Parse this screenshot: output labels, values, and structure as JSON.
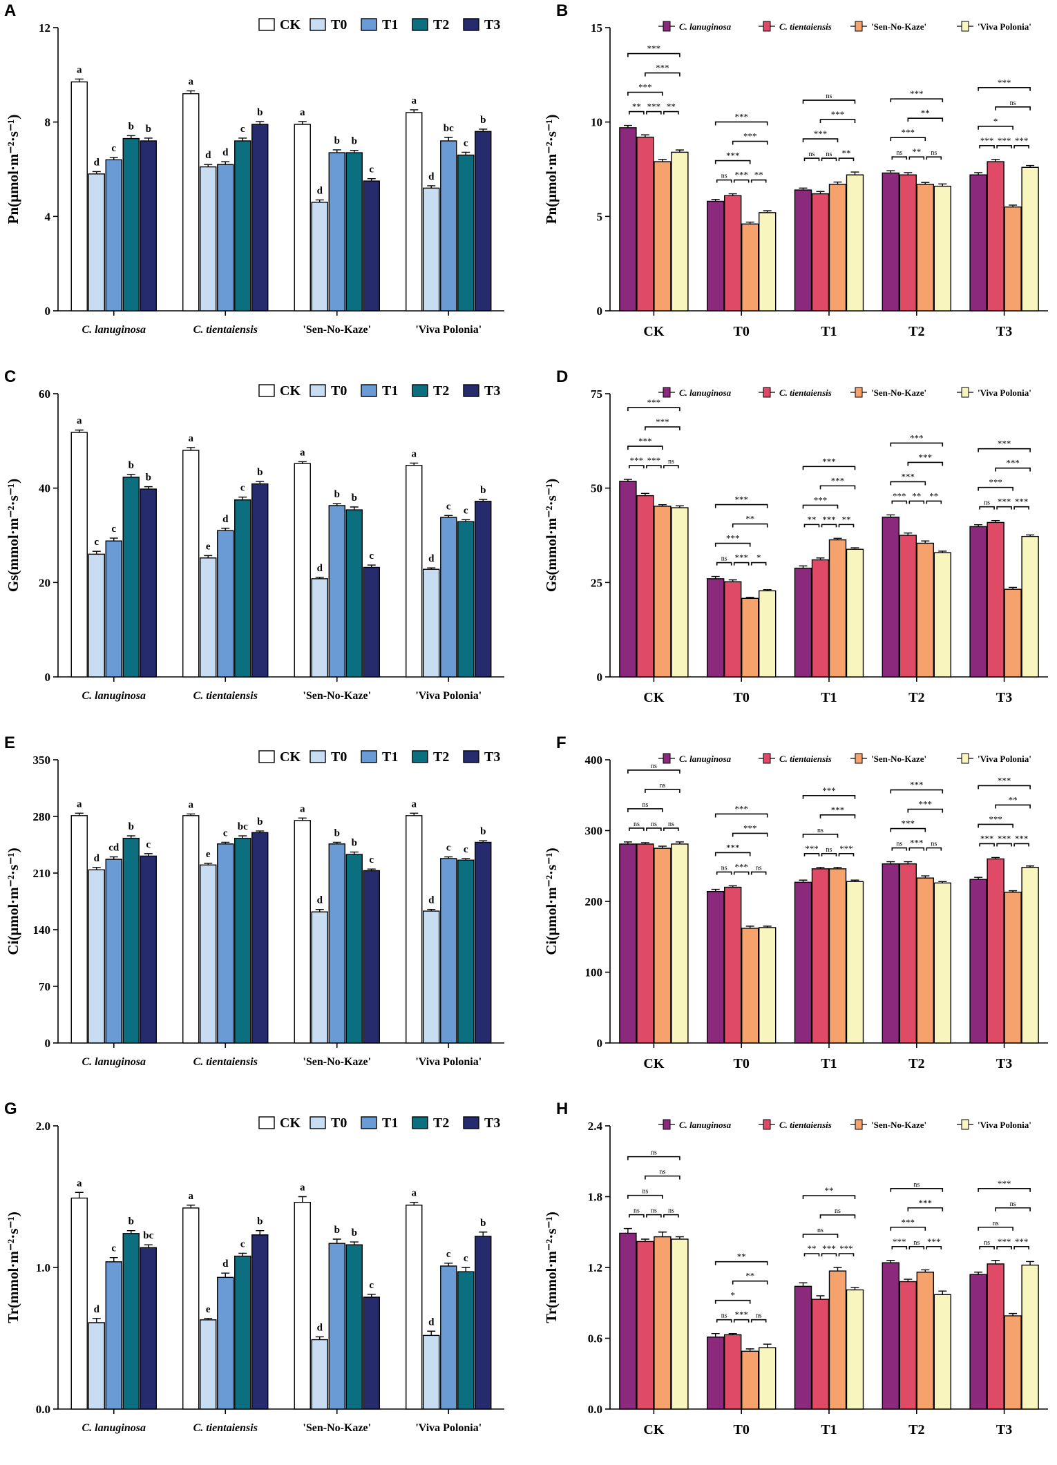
{
  "groups": [
    "C. lanuginosa",
    "C. tientaiensis",
    "'Sen-No-Kaze'",
    "'Viva Polonia'"
  ],
  "group_italic": [
    true,
    true,
    false,
    false
  ],
  "treatments": [
    "CK",
    "T0",
    "T1",
    "T2",
    "T3"
  ],
  "treatment_colors": [
    "#ffffff",
    "#c9ddf2",
    "#6b9bd4",
    "#0c6f80",
    "#252b6d"
  ],
  "cultivar_colors": [
    "#8b2a7c",
    "#df4a66",
    "#f5a26c",
    "#f8f5bf"
  ],
  "chart_data": [
    {
      "id": "A",
      "type": "bar",
      "ylabel": "Pn(μmol·m⁻²·s⁻¹)",
      "ylim": [
        0,
        12
      ],
      "yticks": [
        0,
        4,
        8,
        12
      ],
      "ytick_labels": [
        "0",
        "4",
        "8",
        "12"
      ],
      "categories": [
        "C. lanuginosa",
        "C. tientaiensis",
        "'Sen-No-Kaze'",
        "'Viva Polonia'"
      ],
      "series": [
        {
          "name": "CK",
          "values": [
            9.7,
            9.2,
            7.9,
            8.4
          ],
          "errors": [
            0.12,
            0.12,
            0.12,
            0.12
          ],
          "letters": [
            "a",
            "a",
            "a",
            "a"
          ]
        },
        {
          "name": "T0",
          "values": [
            5.8,
            6.1,
            4.6,
            5.2
          ],
          "errors": [
            0.1,
            0.1,
            0.1,
            0.1
          ],
          "letters": [
            "d",
            "d",
            "d",
            "d"
          ]
        },
        {
          "name": "T1",
          "values": [
            6.4,
            6.2,
            6.7,
            7.2
          ],
          "errors": [
            0.1,
            0.12,
            0.12,
            0.15
          ],
          "letters": [
            "c",
            "d",
            "b",
            "bc"
          ]
        },
        {
          "name": "T2",
          "values": [
            7.3,
            7.2,
            6.7,
            6.6
          ],
          "errors": [
            0.12,
            0.12,
            0.1,
            0.12
          ],
          "letters": [
            "b",
            "c",
            "b",
            "c"
          ]
        },
        {
          "name": "T3",
          "values": [
            7.2,
            7.9,
            5.5,
            7.6
          ],
          "errors": [
            0.12,
            0.12,
            0.1,
            0.1
          ],
          "letters": [
            "b",
            "b",
            "c",
            "b"
          ]
        }
      ]
    },
    {
      "id": "C",
      "type": "bar",
      "ylabel": "Gs(mmol·m⁻²·s⁻¹)",
      "ylim": [
        0,
        60
      ],
      "yticks": [
        0,
        20,
        40,
        60
      ],
      "ytick_labels": [
        "0",
        "20",
        "40",
        "60"
      ],
      "categories": [
        "C. lanuginosa",
        "C. tientaiensis",
        "'Sen-No-Kaze'",
        "'Viva Polonia'"
      ],
      "series": [
        {
          "name": "CK",
          "values": [
            51.8,
            48.0,
            45.2,
            44.8
          ],
          "errors": [
            0.5,
            0.6,
            0.4,
            0.5
          ],
          "letters": [
            "a",
            "a",
            "a",
            "a"
          ]
        },
        {
          "name": "T0",
          "values": [
            26.0,
            25.2,
            20.8,
            22.8
          ],
          "errors": [
            0.6,
            0.5,
            0.3,
            0.3
          ],
          "letters": [
            "c",
            "e",
            "d",
            "d"
          ]
        },
        {
          "name": "T1",
          "values": [
            28.8,
            31.0,
            36.3,
            33.8
          ],
          "errors": [
            0.6,
            0.5,
            0.4,
            0.4
          ],
          "letters": [
            "c",
            "d",
            "b",
            "c"
          ]
        },
        {
          "name": "T2",
          "values": [
            42.3,
            37.5,
            35.4,
            32.9
          ],
          "errors": [
            0.6,
            0.6,
            0.6,
            0.4
          ],
          "letters": [
            "b",
            "c",
            "b",
            "c"
          ]
        },
        {
          "name": "T3",
          "values": [
            39.8,
            40.9,
            23.2,
            37.2
          ],
          "errors": [
            0.5,
            0.5,
            0.5,
            0.4
          ],
          "letters": [
            "b",
            "b",
            "c",
            "b"
          ]
        }
      ]
    },
    {
      "id": "E",
      "type": "bar",
      "ylabel": "Ci(μmol·m⁻²·s⁻¹)",
      "ylim": [
        0,
        350
      ],
      "yticks": [
        0,
        70,
        140,
        210,
        280,
        350
      ],
      "ytick_labels": [
        "0",
        "70",
        "140",
        "210",
        "280",
        "350"
      ],
      "categories": [
        "C. lanuginosa",
        "C. tientaiensis",
        "'Sen-No-Kaze'",
        "'Viva Polonia'"
      ],
      "series": [
        {
          "name": "CK",
          "values": [
            281,
            281,
            275,
            281
          ],
          "errors": [
            3,
            2,
            3,
            3
          ],
          "letters": [
            "a",
            "a",
            "a",
            "a"
          ]
        },
        {
          "name": "T0",
          "values": [
            214,
            220,
            162,
            163
          ],
          "errors": [
            3,
            2,
            3,
            2
          ],
          "letters": [
            "d",
            "e",
            "d",
            "d"
          ]
        },
        {
          "name": "T1",
          "values": [
            227,
            246,
            246,
            228
          ],
          "errors": [
            3,
            2,
            2,
            2
          ],
          "letters": [
            "cd",
            "c",
            "b",
            "c"
          ]
        },
        {
          "name": "T2",
          "values": [
            253,
            253,
            233,
            226
          ],
          "errors": [
            3,
            3,
            3,
            2
          ],
          "letters": [
            "b",
            "bc",
            "b",
            "c"
          ]
        },
        {
          "name": "T3",
          "values": [
            231,
            260,
            213,
            248
          ],
          "errors": [
            3,
            2,
            2,
            2
          ],
          "letters": [
            "c",
            "b",
            "c",
            "b"
          ]
        }
      ]
    },
    {
      "id": "G",
      "type": "bar",
      "ylabel": "Tr(mmol·m⁻²·s⁻¹)",
      "ylim": [
        0,
        2.0
      ],
      "yticks": [
        0,
        1.0,
        2.0
      ],
      "ytick_labels": [
        "0.0",
        "1.0",
        "2.0"
      ],
      "categories": [
        "C. lanuginosa",
        "C. tientaiensis",
        "'Sen-No-Kaze'",
        "'Viva Polonia'"
      ],
      "series": [
        {
          "name": "CK",
          "values": [
            1.49,
            1.42,
            1.46,
            1.44
          ],
          "errors": [
            0.04,
            0.02,
            0.04,
            0.02
          ],
          "letters": [
            "a",
            "a",
            "a",
            "a"
          ]
        },
        {
          "name": "T0",
          "values": [
            0.61,
            0.63,
            0.49,
            0.52
          ],
          "errors": [
            0.03,
            0.01,
            0.02,
            0.03
          ],
          "letters": [
            "d",
            "e",
            "d",
            "d"
          ]
        },
        {
          "name": "T1",
          "values": [
            1.04,
            0.93,
            1.17,
            1.01
          ],
          "errors": [
            0.03,
            0.03,
            0.03,
            0.02
          ],
          "letters": [
            "c",
            "d",
            "b",
            "c"
          ]
        },
        {
          "name": "T2",
          "values": [
            1.24,
            1.08,
            1.16,
            0.97
          ],
          "errors": [
            0.02,
            0.02,
            0.02,
            0.03
          ],
          "letters": [
            "b",
            "c",
            "b",
            "c"
          ]
        },
        {
          "name": "T3",
          "values": [
            1.14,
            1.23,
            0.79,
            1.22
          ],
          "errors": [
            0.02,
            0.03,
            0.02,
            0.03
          ],
          "letters": [
            "bc",
            "b",
            "c",
            "b"
          ]
        }
      ]
    },
    {
      "id": "B",
      "type": "bar",
      "ylabel": "Pn(μmol·m⁻²·s⁻¹)",
      "ylim": [
        0,
        15
      ],
      "yticks": [
        0,
        5,
        10,
        15
      ],
      "ytick_labels": [
        "0",
        "5",
        "10",
        "15"
      ],
      "categories": [
        "CK",
        "T0",
        "T1",
        "T2",
        "T3"
      ],
      "series": [
        {
          "name": "C. lanuginosa",
          "values": [
            9.7,
            5.8,
            6.4,
            7.3,
            7.2
          ],
          "errors": [
            0.12,
            0.1,
            0.1,
            0.12,
            0.12
          ]
        },
        {
          "name": "C. tientaiensis",
          "values": [
            9.2,
            6.1,
            6.2,
            7.2,
            7.9
          ],
          "errors": [
            0.12,
            0.1,
            0.12,
            0.12,
            0.12
          ]
        },
        {
          "name": "'Sen-No-Kaze'",
          "values": [
            7.9,
            4.6,
            6.7,
            6.7,
            5.5
          ],
          "errors": [
            0.12,
            0.1,
            0.12,
            0.1,
            0.1
          ]
        },
        {
          "name": "'Viva Polonia'",
          "values": [
            8.4,
            5.2,
            7.2,
            6.6,
            7.6
          ],
          "errors": [
            0.12,
            0.1,
            0.15,
            0.12,
            0.1
          ]
        }
      ],
      "comparisons": [
        {
          "top": [
            "***",
            "***",
            "***"
          ],
          "adj": [
            "**",
            "***",
            "**"
          ]
        },
        {
          "top": [
            "***",
            "***",
            "***"
          ],
          "adj": [
            "ns",
            "***",
            "**"
          ]
        },
        {
          "top": [
            "***",
            "***",
            "ns"
          ],
          "adj": [
            "ns",
            "ns",
            "**"
          ]
        },
        {
          "top": [
            "***",
            "**",
            "***"
          ],
          "adj": [
            "ns",
            "**",
            "ns"
          ]
        },
        {
          "top": [
            "*",
            "ns",
            "***"
          ],
          "adj": [
            "***",
            "***",
            "***"
          ]
        }
      ]
    },
    {
      "id": "D",
      "type": "bar",
      "ylabel": "Gs(mmol·m⁻²·s⁻¹)",
      "ylim": [
        0,
        75
      ],
      "yticks": [
        0,
        25,
        50,
        75
      ],
      "ytick_labels": [
        "0",
        "25",
        "50",
        "75"
      ],
      "categories": [
        "CK",
        "T0",
        "T1",
        "T2",
        "T3"
      ],
      "series": [
        {
          "name": "C. lanuginosa",
          "values": [
            51.8,
            26.0,
            28.8,
            42.3,
            39.8
          ],
          "errors": [
            0.5,
            0.6,
            0.6,
            0.6,
            0.5
          ]
        },
        {
          "name": "C. tientaiensis",
          "values": [
            48.0,
            25.2,
            31.0,
            37.5,
            40.9
          ],
          "errors": [
            0.6,
            0.5,
            0.5,
            0.6,
            0.5
          ]
        },
        {
          "name": "'Sen-No-Kaze'",
          "values": [
            45.2,
            20.8,
            36.3,
            35.4,
            23.2
          ],
          "errors": [
            0.4,
            0.3,
            0.4,
            0.6,
            0.5
          ]
        },
        {
          "name": "'Viva Polonia'",
          "values": [
            44.8,
            22.8,
            33.8,
            32.9,
            37.2
          ],
          "errors": [
            0.5,
            0.3,
            0.4,
            0.4,
            0.4
          ]
        }
      ],
      "comparisons": [
        {
          "top": [
            "***",
            "***",
            "***"
          ],
          "adj": [
            "***",
            "***",
            "ns"
          ]
        },
        {
          "top": [
            "***",
            "**",
            "***"
          ],
          "adj": [
            "ns",
            "***",
            "*"
          ]
        },
        {
          "top": [
            "***",
            "***",
            "***"
          ],
          "adj": [
            "**",
            "***",
            "**"
          ]
        },
        {
          "top": [
            "***",
            "***",
            "***"
          ],
          "adj": [
            "***",
            "**",
            "**"
          ]
        },
        {
          "top": [
            "***",
            "***",
            "***"
          ],
          "adj": [
            "ns",
            "***",
            "***"
          ]
        }
      ]
    },
    {
      "id": "F",
      "type": "bar",
      "ylabel": "Ci(μmol·m⁻²·s⁻¹)",
      "ylim": [
        0,
        400
      ],
      "yticks": [
        0,
        100,
        200,
        300,
        400
      ],
      "ytick_labels": [
        "0",
        "100",
        "200",
        "300",
        "400"
      ],
      "categories": [
        "CK",
        "T0",
        "T1",
        "T2",
        "T3"
      ],
      "series": [
        {
          "name": "C. lanuginosa",
          "values": [
            281,
            214,
            227,
            253,
            231
          ],
          "errors": [
            3,
            3,
            3,
            3,
            3
          ]
        },
        {
          "name": "C. tientaiensis",
          "values": [
            281,
            220,
            246,
            253,
            260
          ],
          "errors": [
            2,
            2,
            2,
            3,
            2
          ]
        },
        {
          "name": "'Sen-No-Kaze'",
          "values": [
            275,
            162,
            246,
            233,
            213
          ],
          "errors": [
            3,
            3,
            2,
            3,
            2
          ]
        },
        {
          "name": "'Viva Polonia'",
          "values": [
            281,
            163,
            228,
            226,
            248
          ],
          "errors": [
            3,
            2,
            2,
            2,
            2
          ]
        }
      ],
      "comparisons": [
        {
          "top": [
            "ns",
            "ns",
            "ns"
          ],
          "adj": [
            "ns",
            "ns",
            "ns"
          ]
        },
        {
          "top": [
            "***",
            "***",
            "***"
          ],
          "adj": [
            "ns",
            "***",
            "ns"
          ]
        },
        {
          "top": [
            "ns",
            "***",
            "***"
          ],
          "adj": [
            "***",
            "ns",
            "***"
          ]
        },
        {
          "top": [
            "***",
            "***",
            "***"
          ],
          "adj": [
            "ns",
            "***",
            "ns"
          ]
        },
        {
          "top": [
            "***",
            "**",
            "***"
          ],
          "adj": [
            "***",
            "***",
            "***"
          ]
        }
      ]
    },
    {
      "id": "H",
      "type": "bar",
      "ylabel": "Tr(mmol·m⁻²·s⁻¹)",
      "ylim": [
        0,
        2.4
      ],
      "yticks": [
        0,
        0.6,
        1.2,
        1.8,
        2.4
      ],
      "ytick_labels": [
        "0.0",
        "0.6",
        "1.2",
        "1.8",
        "2.4"
      ],
      "categories": [
        "CK",
        "T0",
        "T1",
        "T2",
        "T3"
      ],
      "series": [
        {
          "name": "C. lanuginosa",
          "values": [
            1.49,
            0.61,
            1.04,
            1.24,
            1.14
          ],
          "errors": [
            0.04,
            0.03,
            0.03,
            0.02,
            0.02
          ]
        },
        {
          "name": "C. tientaiensis",
          "values": [
            1.42,
            0.63,
            0.93,
            1.08,
            1.23
          ],
          "errors": [
            0.02,
            0.01,
            0.03,
            0.02,
            0.03
          ]
        },
        {
          "name": "'Sen-No-Kaze'",
          "values": [
            1.46,
            0.49,
            1.17,
            1.16,
            0.79
          ],
          "errors": [
            0.04,
            0.02,
            0.03,
            0.02,
            0.02
          ]
        },
        {
          "name": "'Viva Polonia'",
          "values": [
            1.44,
            0.52,
            1.01,
            0.97,
            1.22
          ],
          "errors": [
            0.02,
            0.03,
            0.02,
            0.03,
            0.03
          ]
        }
      ],
      "comparisons": [
        {
          "top": [
            "ns",
            "ns",
            "ns"
          ],
          "adj": [
            "ns",
            "ns",
            "ns"
          ]
        },
        {
          "top": [
            "*",
            "**",
            "**"
          ],
          "adj": [
            "ns",
            "***",
            "ns"
          ]
        },
        {
          "top": [
            "ns",
            "ns",
            "**"
          ],
          "adj": [
            "**",
            "***",
            "***"
          ]
        },
        {
          "top": [
            "***",
            "***",
            "ns"
          ],
          "adj": [
            "***",
            "ns",
            "***"
          ]
        },
        {
          "top": [
            "ns",
            "ns",
            "***"
          ],
          "adj": [
            "ns",
            "***",
            "***"
          ]
        }
      ]
    }
  ]
}
